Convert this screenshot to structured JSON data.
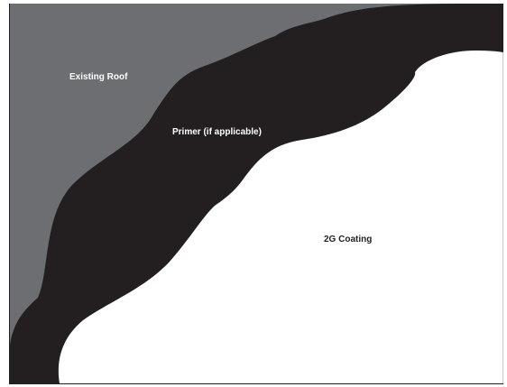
{
  "layers": [
    {
      "id": "existing-roof",
      "label": "Existing Roof",
      "color": "#6d6e71",
      "text_color": "#ffffff"
    },
    {
      "id": "primer",
      "label": "Primer (if applicable)",
      "color": "#231f20",
      "text_color": "#ffffff"
    },
    {
      "id": "coating",
      "label": "2G Coating",
      "color": "#ffffff",
      "text_color": "#231f20"
    }
  ],
  "frame_color": "#231f20"
}
